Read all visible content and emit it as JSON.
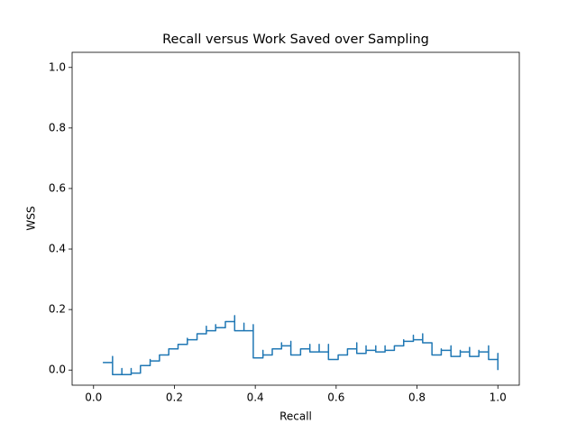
{
  "chart_data": {
    "type": "line",
    "title": "Recall versus Work Saved over Sampling",
    "xlabel": "Recall",
    "ylabel": "WSS",
    "color": "#1f77b4",
    "grid": false,
    "xlim": [
      -0.053,
      1.053
    ],
    "ylim": [
      -0.05,
      1.05
    ],
    "xticks": [
      {
        "value": 0,
        "label": "0.0"
      },
      0.2,
      0.4,
      0.6,
      0.8,
      {
        "value": 1,
        "label": "1.0"
      }
    ],
    "yticks": [
      {
        "value": 0,
        "label": "0.0"
      },
      0.2,
      0.4,
      0.6,
      0.8,
      {
        "value": 1,
        "label": "1.0"
      }
    ],
    "x": [
      0.023,
      0.047,
      0.047,
      0.047,
      0.07,
      0.07,
      0.07,
      0.093,
      0.093,
      0.093,
      0.116,
      0.116,
      0.14,
      0.14,
      0.14,
      0.163,
      0.163,
      0.186,
      0.186,
      0.209,
      0.209,
      0.232,
      0.232,
      0.232,
      0.256,
      0.256,
      0.279,
      0.279,
      0.279,
      0.302,
      0.302,
      0.302,
      0.326,
      0.326,
      0.349,
      0.349,
      0.349,
      0.372,
      0.372,
      0.372,
      0.395,
      0.395,
      0.395,
      0.419,
      0.419,
      0.419,
      0.442,
      0.442,
      0.465,
      0.465,
      0.465,
      0.488,
      0.488,
      0.488,
      0.512,
      0.512,
      0.535,
      0.535,
      0.535,
      0.558,
      0.558,
      0.558,
      0.581,
      0.581,
      0.581,
      0.605,
      0.605,
      0.628,
      0.628,
      0.651,
      0.651,
      0.651,
      0.674,
      0.674,
      0.674,
      0.698,
      0.698,
      0.698,
      0.721,
      0.721,
      0.721,
      0.744,
      0.744,
      0.767,
      0.767,
      0.767,
      0.791,
      0.791,
      0.791,
      0.814,
      0.814,
      0.814,
      0.837,
      0.837,
      0.86,
      0.86,
      0.86,
      0.884,
      0.884,
      0.884,
      0.907,
      0.907,
      0.907,
      0.93,
      0.93,
      0.93,
      0.953,
      0.953,
      0.953,
      0.977,
      0.977,
      0.977,
      1.0,
      1.0,
      1.0
    ],
    "values": [
      0.025,
      0.025,
      0.045,
      -0.015,
      -0.015,
      0.005,
      -0.015,
      -0.015,
      0.005,
      -0.01,
      -0.01,
      0.015,
      0.015,
      0.035,
      0.03,
      0.03,
      0.05,
      0.05,
      0.07,
      0.07,
      0.085,
      0.085,
      0.105,
      0.1,
      0.1,
      0.12,
      0.12,
      0.145,
      0.13,
      0.13,
      0.15,
      0.14,
      0.14,
      0.16,
      0.16,
      0.18,
      0.13,
      0.13,
      0.155,
      0.13,
      0.13,
      0.15,
      0.04,
      0.04,
      0.065,
      0.05,
      0.05,
      0.07,
      0.07,
      0.09,
      0.08,
      0.08,
      0.095,
      0.05,
      0.05,
      0.07,
      0.07,
      0.085,
      0.06,
      0.06,
      0.085,
      0.06,
      0.06,
      0.085,
      0.035,
      0.035,
      0.05,
      0.05,
      0.07,
      0.07,
      0.09,
      0.055,
      0.055,
      0.08,
      0.065,
      0.065,
      0.08,
      0.06,
      0.06,
      0.08,
      0.065,
      0.065,
      0.08,
      0.08,
      0.1,
      0.095,
      0.095,
      0.115,
      0.1,
      0.1,
      0.12,
      0.09,
      0.09,
      0.05,
      0.05,
      0.07,
      0.065,
      0.065,
      0.08,
      0.045,
      0.045,
      0.065,
      0.06,
      0.06,
      0.075,
      0.045,
      0.045,
      0.065,
      0.06,
      0.06,
      0.08,
      0.035,
      0.035,
      0.055,
      0.0
    ]
  }
}
